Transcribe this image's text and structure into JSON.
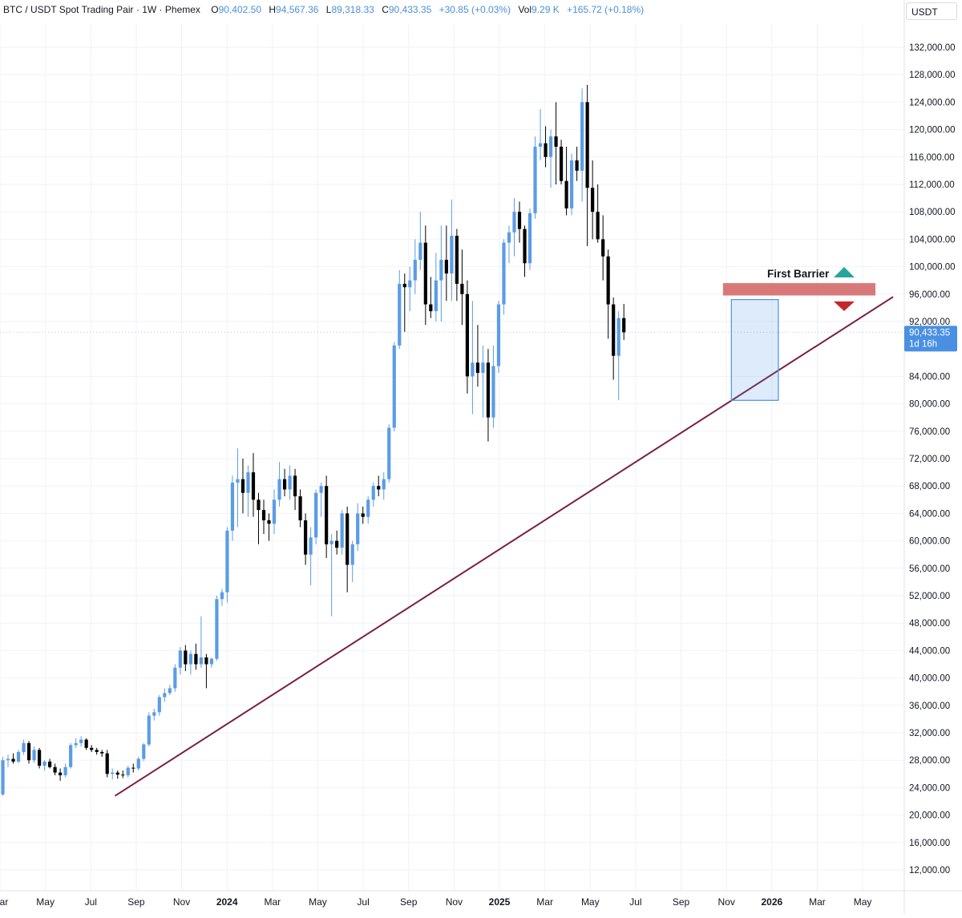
{
  "header": {
    "pair": "BTC / USDT Spot Trading Pair",
    "interval": "1W",
    "exchange": "Phemex",
    "open_label": "O",
    "open": "90,402.50",
    "high_label": "H",
    "high": "94,567.36",
    "low_label": "L",
    "low": "89,318.33",
    "close_label": "C",
    "close": "90,433.35",
    "change": "+30.85 (+0.03%)",
    "vol_label": "Vol",
    "vol": "9.29 K",
    "vol_change": "+165.72 (+0.18%)"
  },
  "currency_button": "USDT",
  "price_tag": {
    "price": "90,433.35",
    "countdown": "1d 16h",
    "value": 90433.35
  },
  "annotations": {
    "first_barrier_label": "First Barrier",
    "resistance_zone": [
      95800,
      97600
    ],
    "box_zone": [
      80500,
      95200
    ]
  },
  "colors": {
    "up": "#5b9ce6",
    "down": "#000000",
    "trendline": "#7b1f45",
    "zone": "#d46a6a",
    "box": "#4a90e2",
    "arrow_up": "#26a69a",
    "arrow_down": "#c62828",
    "price_tag": "#4a90e2"
  },
  "chart_data": {
    "type": "candlestick",
    "interval": "1W",
    "y_ticks": [
      "132,000.00",
      "128,000.00",
      "124,000.00",
      "120,000.00",
      "116,000.00",
      "112,000.00",
      "108,000.00",
      "104,000.00",
      "100,000.00",
      "96,000.00",
      "92,000.00",
      "84,000.00",
      "80,000.00",
      "76,000.00",
      "72,000.00",
      "68,000.00",
      "64,000.00",
      "60,000.00",
      "56,000.00",
      "52,000.00",
      "48,000.00",
      "44,000.00",
      "40,000.00",
      "36,000.00",
      "32,000.00",
      "28,000.00",
      "24,000.00",
      "20,000.00",
      "16,000.00",
      "12,000.00"
    ],
    "y_values": [
      132000,
      128000,
      124000,
      120000,
      116000,
      112000,
      108000,
      104000,
      100000,
      96000,
      92000,
      84000,
      80000,
      76000,
      72000,
      68000,
      64000,
      60000,
      56000,
      52000,
      48000,
      44000,
      40000,
      36000,
      32000,
      28000,
      24000,
      20000,
      16000,
      12000
    ],
    "ylim": [
      9000,
      136800
    ],
    "x_ticks": [
      "Mar",
      "May",
      "Jul",
      "Sep",
      "Nov",
      "2024",
      "Mar",
      "May",
      "Jul",
      "Sep",
      "Nov",
      "2025",
      "Mar",
      "May",
      "Jul",
      "Sep",
      "Nov",
      "2026",
      "Mar",
      "May"
    ],
    "x_tick_weeks": [
      0,
      8.7,
      17.4,
      26.1,
      34.8,
      43.5,
      52.2,
      60.9,
      69.6,
      78.3,
      87,
      95.7,
      104.4,
      113.1,
      121.8,
      130.5,
      139.2,
      147.9,
      156.6,
      165.3
    ],
    "bold_ticks": [
      "2024",
      "2025",
      "2026"
    ],
    "candles": [
      [
        22000,
        23500,
        21500,
        23000
      ],
      [
        23000,
        28500,
        22800,
        28000
      ],
      [
        28000,
        28800,
        27000,
        28200
      ],
      [
        28200,
        29000,
        27500,
        27800
      ],
      [
        27800,
        29500,
        27600,
        29200
      ],
      [
        29200,
        31000,
        28800,
        30500
      ],
      [
        30500,
        30800,
        27500,
        28000
      ],
      [
        28000,
        30000,
        27600,
        29500
      ],
      [
        29500,
        29800,
        26800,
        27200
      ],
      [
        27200,
        28000,
        26500,
        27800
      ],
      [
        27800,
        28200,
        26800,
        27000
      ],
      [
        27000,
        27500,
        25800,
        26200
      ],
      [
        26200,
        26800,
        25000,
        25800
      ],
      [
        25800,
        27500,
        25500,
        27000
      ],
      [
        27000,
        30500,
        26800,
        30200
      ],
      [
        30200,
        31200,
        29800,
        30500
      ],
      [
        30500,
        31500,
        30000,
        31000
      ],
      [
        31000,
        31200,
        29500,
        29800
      ],
      [
        29800,
        30200,
        29200,
        29500
      ],
      [
        29500,
        29800,
        28800,
        29200
      ],
      [
        29200,
        29500,
        28500,
        29000
      ],
      [
        29000,
        29500,
        25500,
        26000
      ],
      [
        26000,
        26800,
        25200,
        26200
      ],
      [
        26200,
        26500,
        25300,
        25900
      ],
      [
        25900,
        26500,
        25400,
        25800
      ],
      [
        25800,
        27200,
        25500,
        26900
      ],
      [
        26900,
        27500,
        26200,
        26800
      ],
      [
        26800,
        28500,
        26500,
        28200
      ],
      [
        28200,
        30500,
        27900,
        30300
      ],
      [
        30300,
        35000,
        30000,
        34500
      ],
      [
        34500,
        35500,
        33800,
        35000
      ],
      [
        35000,
        37500,
        34500,
        37200
      ],
      [
        37200,
        38500,
        36500,
        37800
      ],
      [
        37800,
        39000,
        37500,
        38500
      ],
      [
        38500,
        42000,
        38000,
        41500
      ],
      [
        41500,
        44500,
        40500,
        44000
      ],
      [
        44000,
        44800,
        41000,
        42000
      ],
      [
        42000,
        44000,
        40500,
        43500
      ],
      [
        43500,
        45000,
        41200,
        42000
      ],
      [
        42000,
        49000,
        41500,
        43000
      ],
      [
        43000,
        43500,
        38500,
        42000
      ],
      [
        42000,
        43000,
        41500,
        42800
      ],
      [
        42800,
        52000,
        42500,
        51500
      ],
      [
        51500,
        53000,
        50500,
        52500
      ],
      [
        52500,
        62000,
        51000,
        61500
      ],
      [
        61500,
        69500,
        60000,
        68500
      ],
      [
        68500,
        73500,
        62000,
        69000
      ],
      [
        69000,
        72000,
        64000,
        67000
      ],
      [
        67000,
        71000,
        63500,
        70000
      ],
      [
        70000,
        72800,
        63500,
        66000
      ],
      [
        66000,
        67000,
        59500,
        64500
      ],
      [
        64500,
        66000,
        61000,
        63000
      ],
      [
        63000,
        64000,
        60000,
        62500
      ],
      [
        62500,
        67500,
        61000,
        66000
      ],
      [
        66000,
        71500,
        65000,
        69000
      ],
      [
        69000,
        70500,
        66500,
        67500
      ],
      [
        67500,
        71000,
        66000,
        69500
      ],
      [
        69500,
        70500,
        64500,
        66500
      ],
      [
        66500,
        67500,
        62000,
        63000
      ],
      [
        63000,
        64000,
        56500,
        58000
      ],
      [
        58000,
        62000,
        53500,
        60500
      ],
      [
        60500,
        67500,
        59500,
        67000
      ],
      [
        67000,
        68500,
        63500,
        68000
      ],
      [
        68000,
        69500,
        57500,
        59500
      ],
      [
        59500,
        61000,
        49000,
        60000
      ],
      [
        60000,
        61500,
        58000,
        59000
      ],
      [
        59000,
        64500,
        58000,
        64000
      ],
      [
        64000,
        65000,
        52500,
        56500
      ],
      [
        56500,
        60000,
        54000,
        59500
      ],
      [
        59500,
        65500,
        58500,
        64000
      ],
      [
        64000,
        65000,
        62500,
        63500
      ],
      [
        63500,
        66500,
        62500,
        66000
      ],
      [
        66000,
        68500,
        65000,
        68000
      ],
      [
        68000,
        69500,
        66500,
        67500
      ],
      [
        67500,
        70000,
        66000,
        69000
      ],
      [
        69000,
        77000,
        68500,
        76500
      ],
      [
        76500,
        89000,
        76000,
        88500
      ],
      [
        88500,
        99500,
        88000,
        97500
      ],
      [
        97500,
        99000,
        90500,
        97000
      ],
      [
        97000,
        100000,
        93500,
        98000
      ],
      [
        98000,
        104000,
        96000,
        101000
      ],
      [
        101000,
        108000,
        99500,
        103500
      ],
      [
        103500,
        106000,
        91500,
        94500
      ],
      [
        94500,
        98500,
        92500,
        93500
      ],
      [
        93500,
        102000,
        92000,
        98000
      ],
      [
        98000,
        106000,
        92000,
        101000
      ],
      [
        101000,
        106000,
        95000,
        99000
      ],
      [
        99000,
        109800,
        95000,
        104500
      ],
      [
        104500,
        105500,
        95000,
        97500
      ],
      [
        97500,
        102500,
        91500,
        96000
      ],
      [
        96000,
        98000,
        81500,
        84000
      ],
      [
        84000,
        95000,
        78500,
        86000
      ],
      [
        86000,
        91500,
        82500,
        84500
      ],
      [
        84500,
        88500,
        78000,
        86000
      ],
      [
        86000,
        88000,
        74500,
        78000
      ],
      [
        78000,
        88500,
        76500,
        85500
      ],
      [
        85500,
        95000,
        84500,
        94500
      ],
      [
        94500,
        104000,
        93000,
        103500
      ],
      [
        103500,
        106000,
        100500,
        105000
      ],
      [
        105000,
        110000,
        101500,
        108000
      ],
      [
        108000,
        109500,
        103500,
        105500
      ],
      [
        105500,
        106000,
        98500,
        100500
      ],
      [
        100500,
        108500,
        99500,
        107800
      ],
      [
        107800,
        119000,
        107000,
        117500
      ],
      [
        117500,
        123000,
        115500,
        118000
      ],
      [
        118000,
        120500,
        114500,
        116000
      ],
      [
        116000,
        120000,
        111500,
        119000
      ],
      [
        119000,
        124000,
        112000,
        117500
      ],
      [
        117500,
        118500,
        112000,
        112500
      ],
      [
        112500,
        117500,
        107500,
        108500
      ],
      [
        108500,
        116500,
        107500,
        115500
      ],
      [
        115500,
        117500,
        112500,
        114000
      ],
      [
        114000,
        126000,
        109500,
        124000
      ],
      [
        124000,
        126500,
        103000,
        111500
      ],
      [
        111500,
        115500,
        104000,
        108000
      ],
      [
        108000,
        112000,
        103500,
        104000
      ],
      [
        104000,
        107500,
        98000,
        101500
      ],
      [
        101500,
        102500,
        89500,
        94500
      ],
      [
        94500,
        95500,
        83500,
        87000
      ],
      [
        87000,
        93500,
        80500,
        92500
      ],
      [
        92500,
        94567,
        89318,
        90433
      ]
    ],
    "trendline": {
      "start": {
        "week": 22.5,
        "price": 22800
      },
      "end": {
        "week": 171.6,
        "price": 95600
      }
    }
  }
}
